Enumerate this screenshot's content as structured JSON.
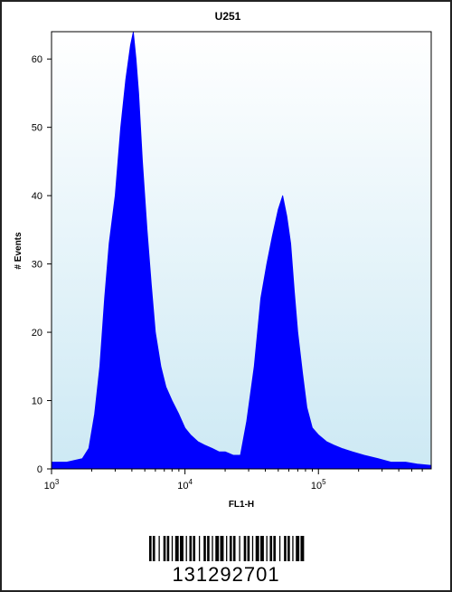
{
  "chart_data": {
    "type": "area",
    "title": "U251",
    "xlabel": "FL1-H",
    "ylabel": "# Events",
    "x_scale": "log",
    "xlim": [
      1000,
      700000
    ],
    "ylim": [
      0,
      64
    ],
    "x_ticks": [
      {
        "value": 1000,
        "base": "10",
        "exp": "3"
      },
      {
        "value": 10000,
        "base": "10",
        "exp": "4"
      },
      {
        "value": 100000,
        "base": "10",
        "exp": "5"
      }
    ],
    "y_ticks": [
      0,
      10,
      20,
      30,
      40,
      50,
      60
    ],
    "grid": false,
    "colors": {
      "fill": "#0000ff",
      "plot_bg_top": "#ffffff",
      "plot_bg_bottom": "#cde9f4"
    },
    "series": [
      {
        "x": [
          1000,
          1300,
          1700,
          1900,
          2100,
          2300,
          2500,
          2700,
          3000,
          3300,
          3600,
          3900,
          4100,
          4300,
          4500,
          4800,
          5200,
          5600,
          6000,
          6600,
          7200,
          8000,
          9000,
          10000,
          11000,
          12500,
          14000,
          16000,
          18000,
          20000,
          23000,
          26000,
          29000,
          33000,
          37000,
          41000,
          45000,
          50000,
          54000,
          58000,
          62000,
          66000,
          70000,
          76000,
          82000,
          90000,
          100000,
          115000,
          130000,
          150000,
          180000,
          220000,
          280000,
          350000,
          450000,
          550000,
          700000
        ],
        "y": [
          1,
          1,
          1.5,
          3,
          8,
          15,
          25,
          33,
          40,
          50,
          57,
          62,
          64,
          60,
          55,
          45,
          35,
          27,
          20,
          15,
          12,
          10,
          8,
          6,
          5,
          4,
          3.5,
          3,
          2.5,
          2.5,
          2,
          2,
          7,
          15,
          25,
          30,
          34,
          38,
          40,
          37,
          33,
          26,
          20,
          14,
          9,
          6,
          5,
          4,
          3.5,
          3,
          2.5,
          2,
          1.5,
          1,
          1,
          0.7,
          0.5
        ]
      }
    ]
  },
  "barcode": {
    "number": "131292701"
  }
}
